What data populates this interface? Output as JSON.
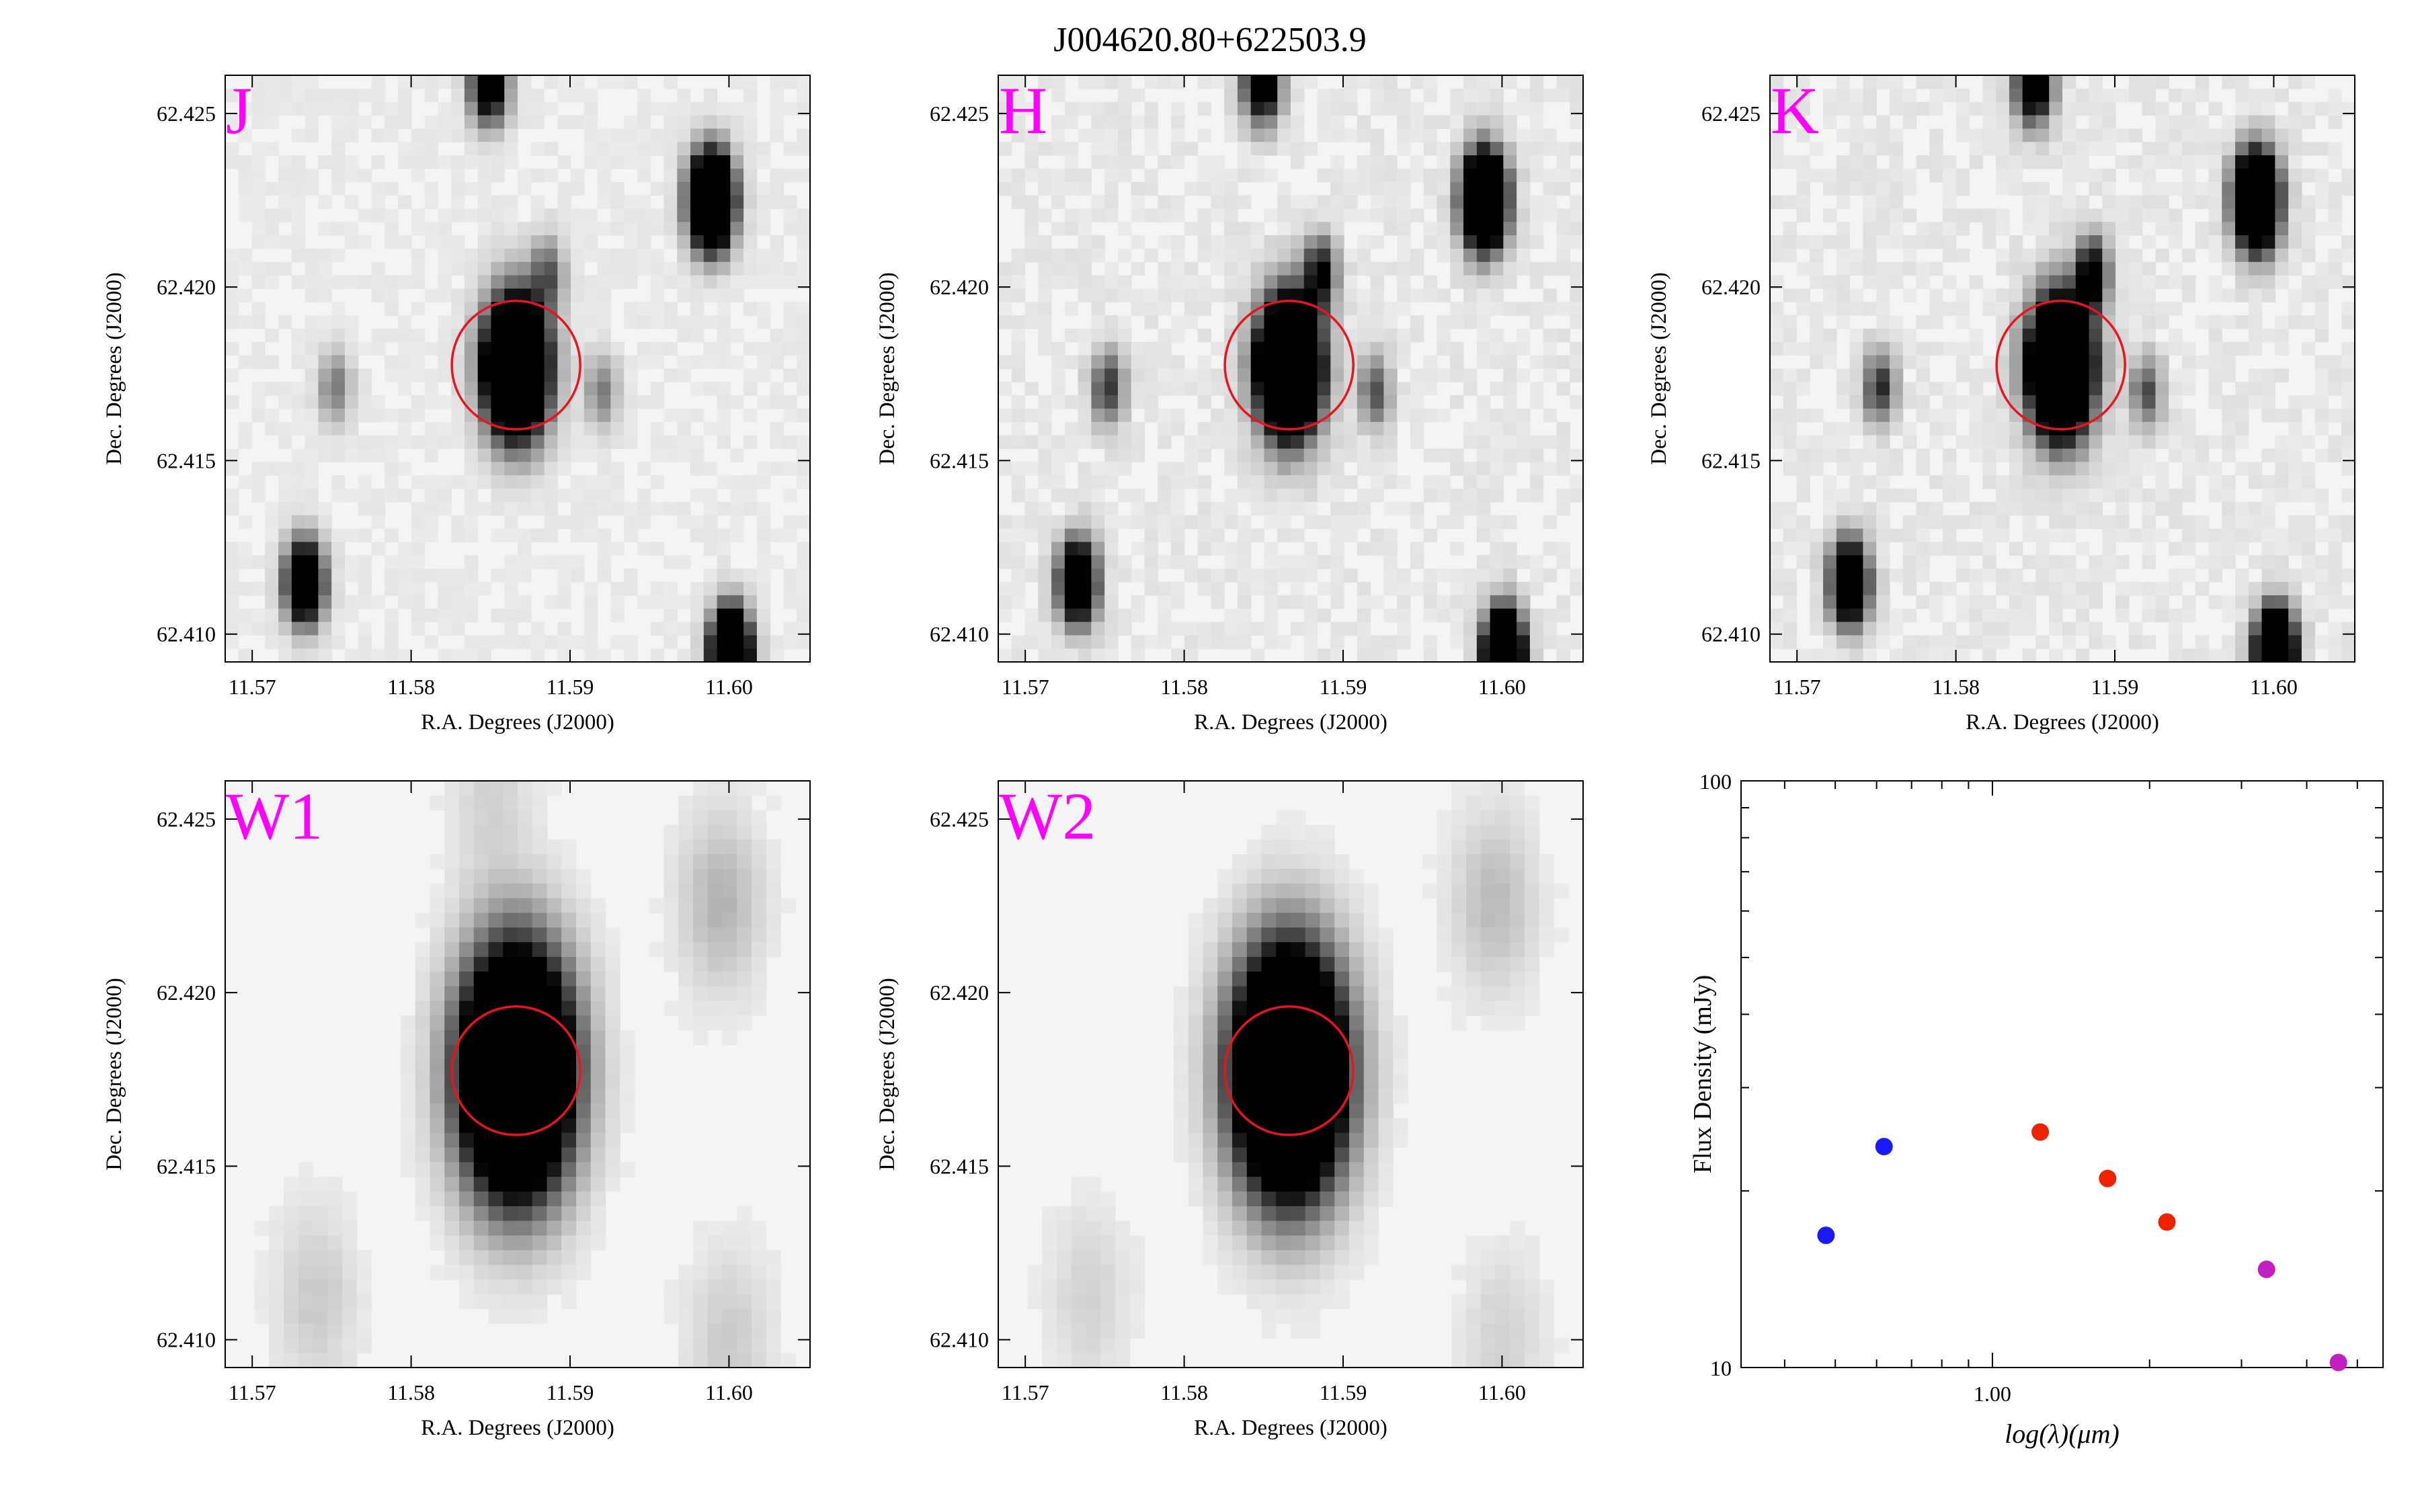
{
  "figure_title": "J004620.80+622503.9",
  "colors": {
    "band_label": "#ff00ff",
    "aperture": "#e8141e",
    "optical": "#1a1aff",
    "nir": "#ee2200",
    "wise": "#c21fc2",
    "axis": "#000000"
  },
  "chart_data": [
    {
      "type": "heatmap",
      "band": "J",
      "xlabel": "R.A. Degrees (J2000)",
      "ylabel": "Dec. Degrees (J2000)",
      "xlim": [
        11.5683,
        11.6051
      ],
      "ylim": [
        62.4092,
        62.4261
      ],
      "xticks": [
        "11.57",
        "11.58",
        "11.59",
        "11.60"
      ],
      "yticks": [
        "62.410",
        "62.415",
        "62.420",
        "62.425"
      ],
      "aperture": {
        "ra": 11.5866,
        "dec": 62.41775,
        "radius_deg": 0.00185
      },
      "sources": [
        {
          "ra": 11.5866,
          "dec": 62.4177,
          "peak": 1.0,
          "sigma_deg": 0.0013
        },
        {
          "ra": 11.5989,
          "dec": 62.4225,
          "peak": 0.95,
          "sigma_deg": 0.0009
        },
        {
          "ra": 11.5733,
          "dec": 62.4115,
          "peak": 0.6,
          "sigma_deg": 0.0008
        },
        {
          "ra": 11.6001,
          "dec": 62.4095,
          "peak": 0.9,
          "sigma_deg": 0.0008
        },
        {
          "ra": 11.5849,
          "dec": 62.4259,
          "peak": 0.45,
          "sigma_deg": 0.0008
        },
        {
          "ra": 11.5886,
          "dec": 62.4204,
          "peak": 0.18,
          "sigma_deg": 0.0007
        },
        {
          "ra": 11.592,
          "dec": 62.417,
          "peak": 0.15,
          "sigma_deg": 0.0007
        },
        {
          "ra": 11.5752,
          "dec": 62.4171,
          "peak": 0.15,
          "sigma_deg": 0.0007
        }
      ]
    },
    {
      "type": "heatmap",
      "band": "H",
      "xlabel": "R.A. Degrees (J2000)",
      "ylabel": "Dec. Degrees (J2000)",
      "xlim": [
        11.5683,
        11.6051
      ],
      "ylim": [
        62.4092,
        62.4261
      ],
      "xticks": [
        "11.57",
        "11.58",
        "11.59",
        "11.60"
      ],
      "yticks": [
        "62.410",
        "62.415",
        "62.420",
        "62.425"
      ],
      "aperture": {
        "ra": 11.5866,
        "dec": 62.41775,
        "radius_deg": 0.00185
      },
      "sources": [
        {
          "ra": 11.5866,
          "dec": 62.4177,
          "peak": 1.0,
          "sigma_deg": 0.0013
        },
        {
          "ra": 11.5989,
          "dec": 62.4225,
          "peak": 0.95,
          "sigma_deg": 0.0009
        },
        {
          "ra": 11.5733,
          "dec": 62.4115,
          "peak": 0.6,
          "sigma_deg": 0.0008
        },
        {
          "ra": 11.6001,
          "dec": 62.4095,
          "peak": 0.9,
          "sigma_deg": 0.0008
        },
        {
          "ra": 11.5849,
          "dec": 62.4259,
          "peak": 0.45,
          "sigma_deg": 0.0008
        },
        {
          "ra": 11.5886,
          "dec": 62.4204,
          "peak": 0.3,
          "sigma_deg": 0.0007
        },
        {
          "ra": 11.592,
          "dec": 62.417,
          "peak": 0.2,
          "sigma_deg": 0.0007
        },
        {
          "ra": 11.5752,
          "dec": 62.4171,
          "peak": 0.25,
          "sigma_deg": 0.0007
        }
      ]
    },
    {
      "type": "heatmap",
      "band": "K",
      "xlabel": "R.A. Degrees (J2000)",
      "ylabel": "Dec. Degrees (J2000)",
      "xlim": [
        11.5683,
        11.6051
      ],
      "ylim": [
        62.4092,
        62.4261
      ],
      "xticks": [
        "11.57",
        "11.58",
        "11.59",
        "11.60"
      ],
      "yticks": [
        "62.410",
        "62.415",
        "62.420",
        "62.425"
      ],
      "aperture": {
        "ra": 11.5866,
        "dec": 62.41775,
        "radius_deg": 0.00185
      },
      "sources": [
        {
          "ra": 11.5866,
          "dec": 62.4177,
          "peak": 1.0,
          "sigma_deg": 0.0013
        },
        {
          "ra": 11.5989,
          "dec": 62.4225,
          "peak": 0.95,
          "sigma_deg": 0.0009
        },
        {
          "ra": 11.5733,
          "dec": 62.4115,
          "peak": 0.6,
          "sigma_deg": 0.0008
        },
        {
          "ra": 11.6001,
          "dec": 62.4095,
          "peak": 0.9,
          "sigma_deg": 0.0008
        },
        {
          "ra": 11.5849,
          "dec": 62.4259,
          "peak": 0.45,
          "sigma_deg": 0.0008
        },
        {
          "ra": 11.5886,
          "dec": 62.4204,
          "peak": 0.35,
          "sigma_deg": 0.0007
        },
        {
          "ra": 11.592,
          "dec": 62.417,
          "peak": 0.2,
          "sigma_deg": 0.0007
        },
        {
          "ra": 11.5752,
          "dec": 62.4171,
          "peak": 0.25,
          "sigma_deg": 0.0007
        }
      ]
    },
    {
      "type": "heatmap",
      "band": "W1",
      "xlabel": "R.A. Degrees (J2000)",
      "ylabel": "Dec. Degrees (J2000)",
      "xlim": [
        11.5683,
        11.6051
      ],
      "ylim": [
        62.4092,
        62.4261
      ],
      "xticks": [
        "11.57",
        "11.58",
        "11.59",
        "11.60"
      ],
      "yticks": [
        "62.410",
        "62.415",
        "62.420",
        "62.425"
      ],
      "aperture": {
        "ra": 11.5866,
        "dec": 62.41775,
        "radius_deg": 0.00185
      },
      "sources": [
        {
          "ra": 11.5866,
          "dec": 62.4177,
          "peak": 1.0,
          "sigma_deg": 0.0023
        },
        {
          "ra": 11.5995,
          "dec": 62.4226,
          "peak": 0.08,
          "sigma_deg": 0.0018
        },
        {
          "ra": 11.574,
          "dec": 62.4112,
          "peak": 0.05,
          "sigma_deg": 0.0018
        },
        {
          "ra": 11.6,
          "dec": 62.41,
          "peak": 0.05,
          "sigma_deg": 0.0018
        },
        {
          "ra": 11.585,
          "dec": 62.4258,
          "peak": 0.04,
          "sigma_deg": 0.0018
        }
      ]
    },
    {
      "type": "heatmap",
      "band": "W2",
      "xlabel": "R.A. Degrees (J2000)",
      "ylabel": "Dec. Degrees (J2000)",
      "xlim": [
        11.5683,
        11.6051
      ],
      "ylim": [
        62.4092,
        62.4261
      ],
      "xticks": [
        "11.57",
        "11.58",
        "11.59",
        "11.60"
      ],
      "yticks": [
        "62.410",
        "62.415",
        "62.420",
        "62.425"
      ],
      "aperture": {
        "ra": 11.5866,
        "dec": 62.41775,
        "radius_deg": 0.00185
      },
      "sources": [
        {
          "ra": 11.5866,
          "dec": 62.4177,
          "peak": 1.0,
          "sigma_deg": 0.0023
        },
        {
          "ra": 11.5995,
          "dec": 62.4226,
          "peak": 0.07,
          "sigma_deg": 0.0018
        },
        {
          "ra": 11.574,
          "dec": 62.4112,
          "peak": 0.04,
          "sigma_deg": 0.0018
        },
        {
          "ra": 11.6,
          "dec": 62.41,
          "peak": 0.04,
          "sigma_deg": 0.0018
        }
      ]
    },
    {
      "type": "scatter",
      "xlabel": "log(λ)(μm)",
      "ylabel": "Flux Density (mJy)",
      "xscale": "log",
      "yscale": "log",
      "xlim": [
        0.33,
        5.6
      ],
      "ylim": [
        10,
        100
      ],
      "xticks": [
        "1.00"
      ],
      "yticks": [
        "10",
        "100"
      ],
      "series": [
        {
          "color_key": "optical",
          "x": [
            0.48,
            0.62
          ],
          "y": [
            16.8,
            23.8
          ]
        },
        {
          "color_key": "nir",
          "x": [
            1.235,
            1.662,
            2.159
          ],
          "y": [
            25.2,
            21.0,
            17.7
          ]
        },
        {
          "color_key": "wise",
          "x": [
            3.35,
            4.6
          ],
          "y": [
            14.7,
            10.2
          ]
        }
      ]
    }
  ]
}
